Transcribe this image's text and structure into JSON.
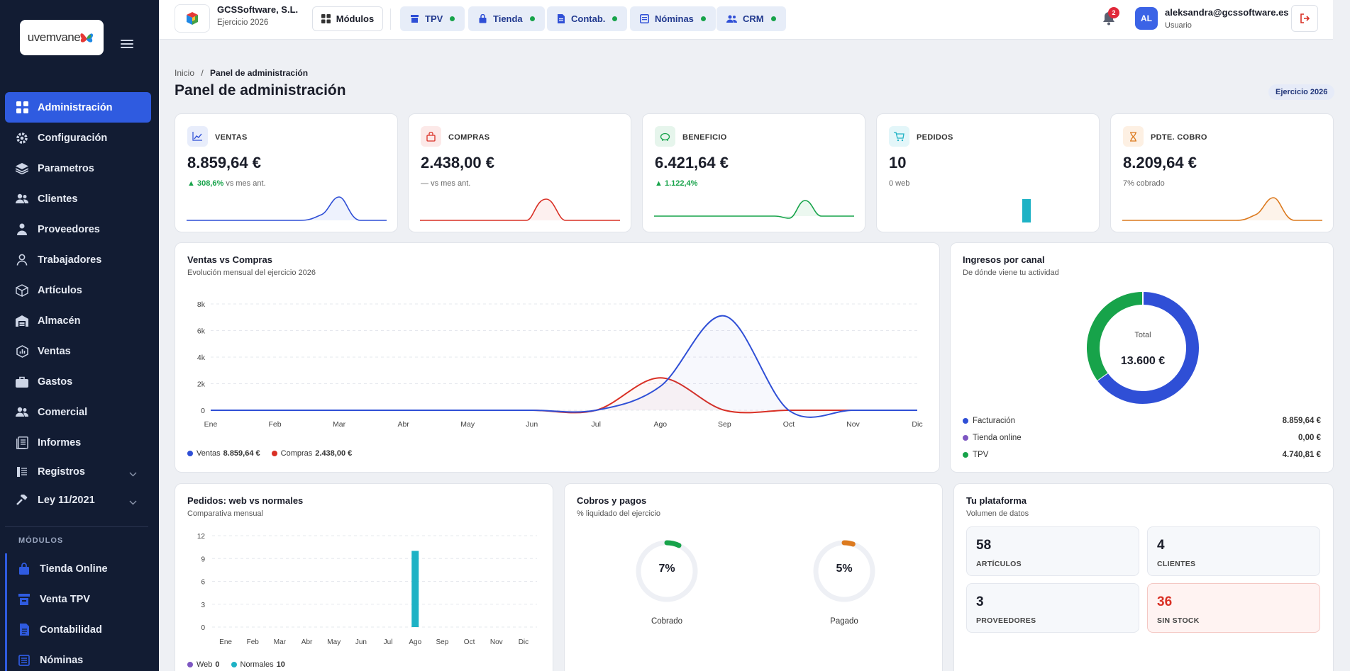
{
  "brand": {
    "logo_text": "uvemvane"
  },
  "sidebar": {
    "items": [
      {
        "label": "Administración",
        "icon": "grid-icon",
        "active": true
      },
      {
        "label": "Configuración",
        "icon": "gear-icon"
      },
      {
        "label": "Parametros",
        "icon": "layers-icon"
      },
      {
        "label": "Clientes",
        "icon": "users-icon"
      },
      {
        "label": "Proveedores",
        "icon": "supplier-icon"
      },
      {
        "label": "Trabajadores",
        "icon": "user-icon"
      },
      {
        "label": "Artículos",
        "icon": "box-icon"
      },
      {
        "label": "Almacén",
        "icon": "warehouse-icon"
      },
      {
        "label": "Ventas",
        "icon": "chart-icon"
      },
      {
        "label": "Gastos",
        "icon": "briefcase-icon"
      },
      {
        "label": "Comercial",
        "icon": "team-icon"
      },
      {
        "label": "Informes",
        "icon": "reports-icon"
      },
      {
        "label": "Registros",
        "icon": "register-icon",
        "expandable": true
      },
      {
        "label": "Ley 11/2021",
        "icon": "gavel-icon",
        "expandable": true
      }
    ],
    "modules_title": "MÓDULOS",
    "modules": [
      {
        "label": "Tienda Online"
      },
      {
        "label": "Venta TPV"
      },
      {
        "label": "Contabilidad"
      },
      {
        "label": "Nóminas"
      }
    ]
  },
  "topbar": {
    "company_name": "GCSSoftware, S.L.",
    "fiscal_year": "Ejercicio 2026",
    "modules_button": "Módulos",
    "pills": [
      {
        "label": "TPV"
      },
      {
        "label": "Tienda"
      },
      {
        "label": "Contab."
      },
      {
        "label": "Nóminas"
      },
      {
        "label": "CRM"
      }
    ],
    "notifications": "2",
    "avatar_initials": "AL",
    "user_email": "aleksandra@gcssoftware.es",
    "user_role": "Usuario"
  },
  "page": {
    "breadcrumb_home": "Inicio",
    "breadcrumb_sep": "/",
    "breadcrumb_current": "Panel de administración",
    "title": "Panel de administración",
    "year_badge": "Ejercicio 2026"
  },
  "kpis": [
    {
      "label": "VENTAS",
      "value": "8.859,64 €",
      "delta": "308,6%",
      "note": "vs mes ant.",
      "color": "#2f4fd6"
    },
    {
      "label": "COMPRAS",
      "value": "2.438,00 €",
      "delta": "—",
      "note": "vs mes ant.",
      "color": "#d93025"
    },
    {
      "label": "BENEFICIO",
      "value": "6.421,64 €",
      "delta": "1.122,4%",
      "note": "",
      "color": "#17a34a"
    },
    {
      "label": "PEDIDOS",
      "value": "10",
      "note": "0 web",
      "color": "#1eb2c5"
    },
    {
      "label": "PDTE. COBRO",
      "value": "8.209,64 €",
      "note": "7% cobrado",
      "color": "#dc7a1f"
    }
  ],
  "sales_chart": {
    "title": "Ventas vs Compras",
    "subtitle": "Evolución mensual del ejercicio 2026",
    "legend": [
      {
        "name": "Ventas",
        "total": "8.859,64 €",
        "color": "#2f4fd6"
      },
      {
        "name": "Compras",
        "total": "2.438,00 €",
        "color": "#d93025"
      }
    ]
  },
  "channel_chart": {
    "title": "Ingresos por canal",
    "subtitle": "De dónde viene tu actividad",
    "total_label": "Total",
    "total_value": "13.600 €",
    "rows": [
      {
        "name": "Facturación",
        "value": "8.859,64 €",
        "color": "#2f4fd6"
      },
      {
        "name": "Tienda online",
        "value": "0,00 €",
        "color": "#7e57c2"
      },
      {
        "name": "TPV",
        "value": "4.740,81 €",
        "color": "#17a34a"
      }
    ]
  },
  "orders_chart": {
    "title": "Pedidos: web vs normales",
    "subtitle": "Comparativa mensual",
    "legend": [
      {
        "name": "Web",
        "total": "0",
        "color": "#7e57c2"
      },
      {
        "name": "Normales",
        "total": "10",
        "color": "#1eb2c5"
      }
    ]
  },
  "payments": {
    "title": "Cobros y pagos",
    "subtitle": "% liquidado del ejercicio",
    "gauges": [
      {
        "value": "7%",
        "pct": 7,
        "label": "Cobrado",
        "color": "#17a34a"
      },
      {
        "value": "5%",
        "pct": 5,
        "label": "Pagado",
        "color": "#dc7a1f"
      }
    ]
  },
  "platform": {
    "title": "Tu plataforma",
    "subtitle": "Volumen de datos",
    "stats": [
      {
        "value": "58",
        "label": "ARTÍCULOS"
      },
      {
        "value": "4",
        "label": "CLIENTES"
      },
      {
        "value": "3",
        "label": "PROVEEDORES"
      },
      {
        "value": "36",
        "label": "SIN STOCK",
        "warn": true
      }
    ]
  },
  "chart_data": [
    {
      "type": "line",
      "categories": [
        "Ene",
        "Feb",
        "Mar",
        "Abr",
        "May",
        "Jun",
        "Jul",
        "Ago",
        "Sep",
        "Oct",
        "Nov",
        "Dic"
      ],
      "y_ticks": [
        "0",
        "2k",
        "4k",
        "6k",
        "8k"
      ],
      "ylim": [
        0,
        8000
      ],
      "series": [
        {
          "name": "Ventas",
          "values": [
            0,
            0,
            0,
            0,
            0,
            0,
            0,
            1800,
            7100,
            0,
            0,
            0
          ],
          "color": "#2f4fd6"
        },
        {
          "name": "Compras",
          "values": [
            0,
            0,
            0,
            0,
            0,
            0,
            0,
            2438,
            0,
            0,
            0,
            0
          ],
          "color": "#d93025"
        }
      ],
      "grid": true
    },
    {
      "type": "pie",
      "categories": [
        "Facturación",
        "Tienda online",
        "TPV"
      ],
      "values": [
        8859.64,
        0,
        4740.81
      ]
    },
    {
      "type": "bar",
      "categories": [
        "Ene",
        "Feb",
        "Mar",
        "Abr",
        "May",
        "Jun",
        "Jul",
        "Ago",
        "Sep",
        "Oct",
        "Nov",
        "Dic"
      ],
      "y_ticks": [
        "0",
        "3",
        "6",
        "9",
        "12"
      ],
      "ylim": [
        0,
        12
      ],
      "series": [
        {
          "name": "Web",
          "values": [
            0,
            0,
            0,
            0,
            0,
            0,
            0,
            0,
            0,
            0,
            0,
            0
          ],
          "color": "#7e57c2"
        },
        {
          "name": "Normales",
          "values": [
            0,
            0,
            0,
            0,
            0,
            0,
            0,
            10,
            0,
            0,
            0,
            0
          ],
          "color": "#1eb2c5"
        }
      ],
      "grid": true
    }
  ]
}
